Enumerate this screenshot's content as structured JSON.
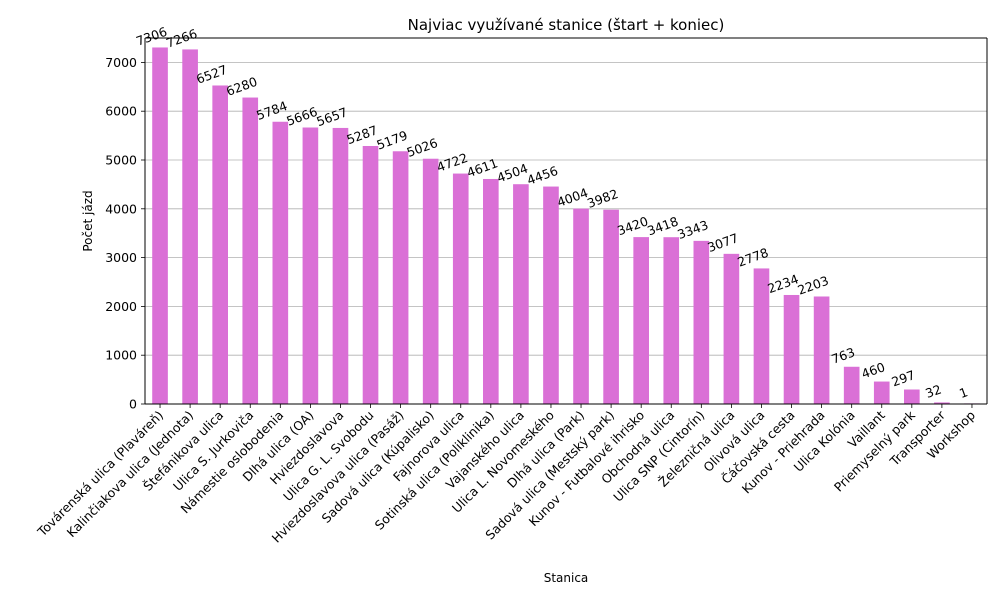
{
  "chart_data": {
    "type": "bar",
    "title": "Najviac využívané stanice (štart + koniec)",
    "xlabel": "Stanica",
    "ylabel": "Počet jázd",
    "ylim": [
      0,
      7500
    ],
    "yticks": [
      0,
      1000,
      2000,
      3000,
      4000,
      5000,
      6000,
      7000
    ],
    "grid": "horizontal",
    "legend": "none",
    "bar_color": "#da70d6",
    "categories": [
      "Továrenská ulica (Plaváreň)",
      "Kalinčiakova ulica (Jednota)",
      "Štefánikova ulica",
      "Ulica S. Jurkoviča",
      "Námestie oslobodenia",
      "Dlhá ulica (OA)",
      "Hviezdoslavova",
      "Ulica G. L. Svobodu",
      "Hviezdoslavova ulica (Pasáž)",
      "Sadová ulica (Kúpalisko)",
      "Fajnorova ulica",
      "Sotinská ulica (Poliklinika)",
      "Vajanského ulica",
      "Ulica L. Novomeského",
      "Dlhá ulica (Park)",
      "Sadová ulica (Mestský park)",
      "Kunov - Futbalové ihrisko",
      "Obchodná ulica",
      "Ulica SNP (Cintorín)",
      "Železničná ulica",
      "Olivová ulica",
      "Čáčovská cesta",
      "Kunov - Priehrada",
      "Ulica Kolónia",
      "Vaillant",
      "Priemyselný park",
      "Transporter",
      "Workshop"
    ],
    "values": [
      7306,
      7266,
      6527,
      6280,
      5784,
      5666,
      5657,
      5287,
      5179,
      5026,
      4722,
      4611,
      4504,
      4456,
      4004,
      3982,
      3420,
      3418,
      3343,
      3077,
      2778,
      2234,
      2203,
      763,
      460,
      297,
      32,
      1
    ]
  }
}
